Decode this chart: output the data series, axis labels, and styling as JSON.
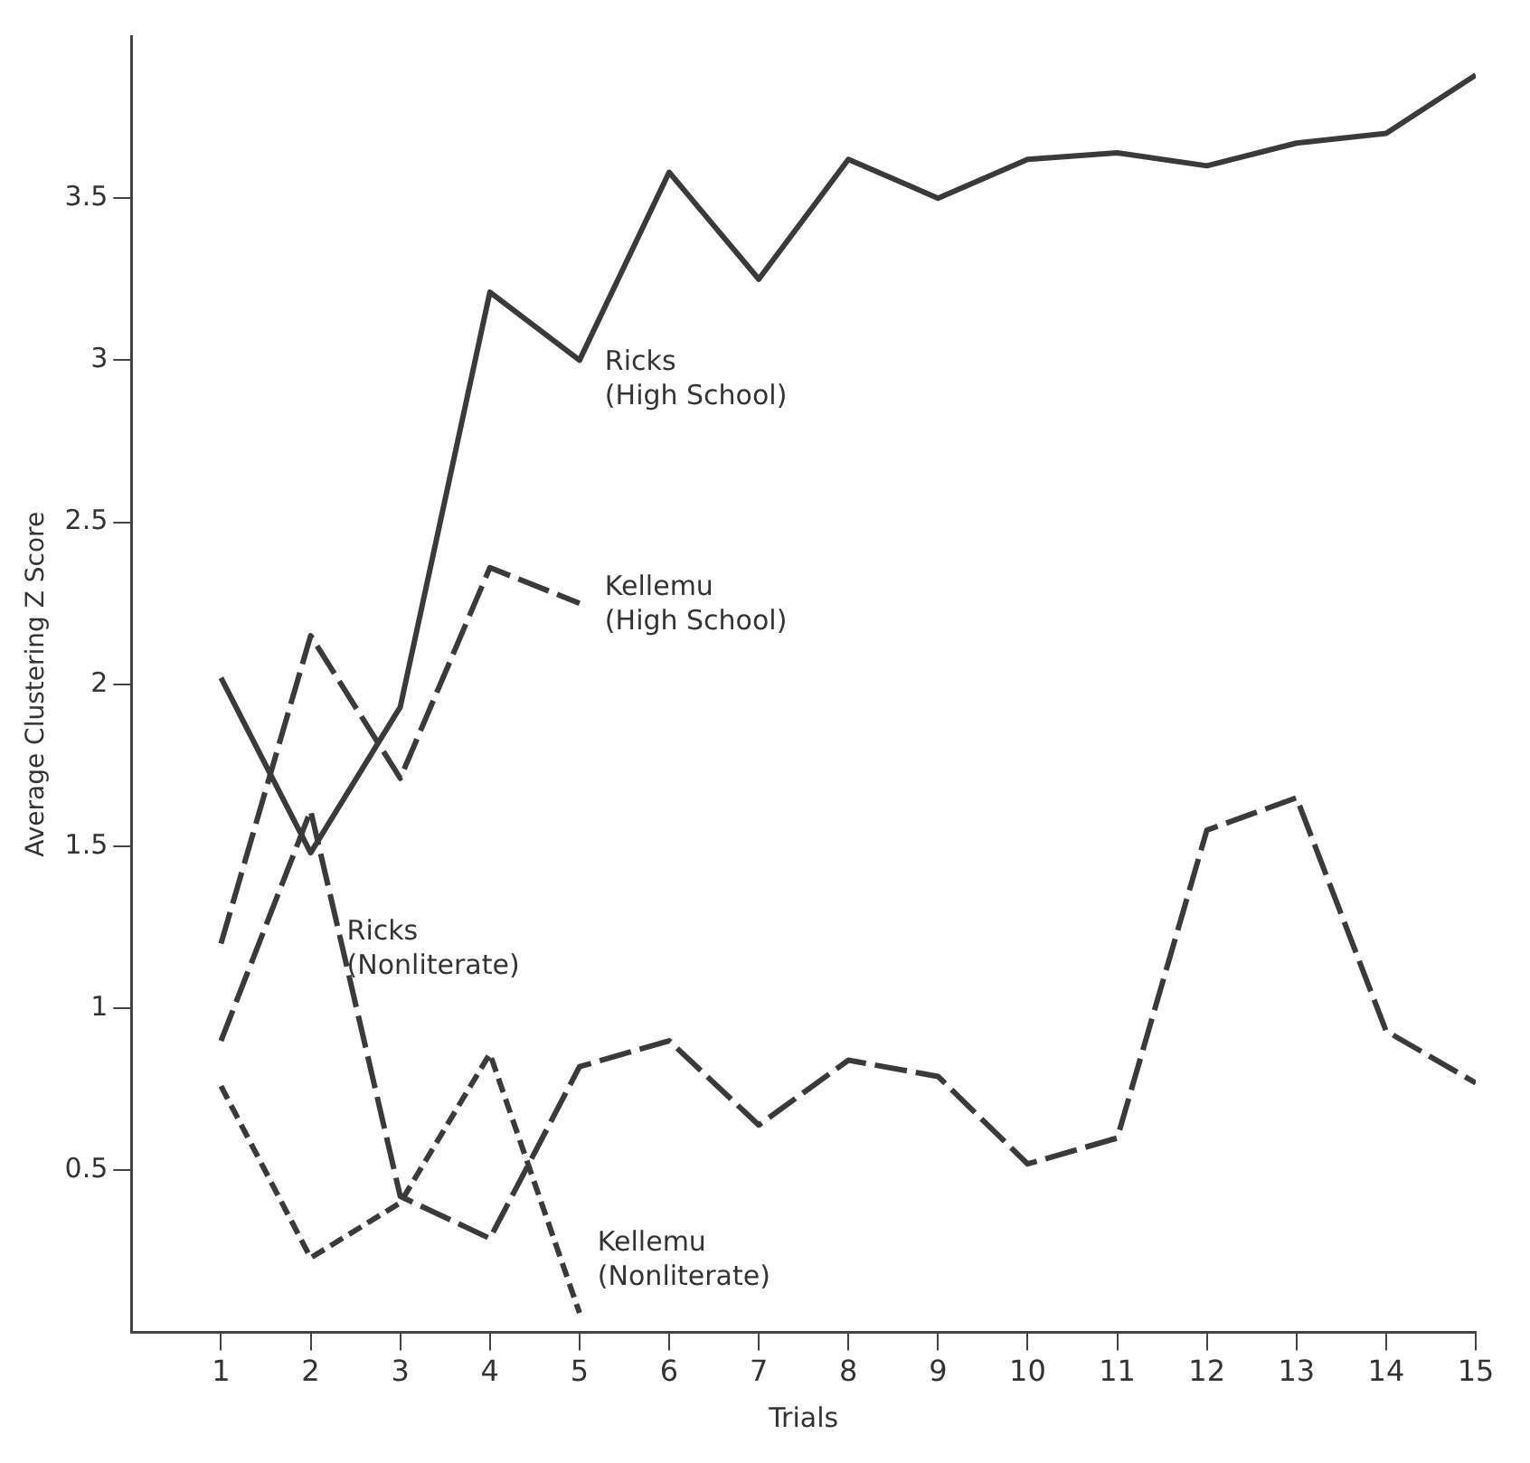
{
  "chart_data": {
    "type": "line",
    "xlabel": "Trials",
    "ylabel": "Average Clustering Z Score",
    "x": [
      1,
      2,
      3,
      4,
      5,
      6,
      7,
      8,
      9,
      10,
      11,
      12,
      13,
      14,
      15
    ],
    "series": [
      {
        "name": "Ricks (High School)",
        "color": "#3a3a3a",
        "line_style": "solid",
        "values": [
          2.02,
          1.48,
          1.93,
          3.21,
          3.0,
          3.58,
          3.25,
          3.62,
          3.5,
          3.62,
          3.64,
          3.6,
          3.67,
          3.7,
          3.88
        ]
      },
      {
        "name": "Kellemu (High School)",
        "color": "#3a3a3a",
        "line_style": "dashed",
        "values": [
          1.2,
          2.15,
          1.71,
          2.36,
          2.25,
          null,
          null,
          null,
          null,
          null,
          null,
          null,
          null,
          null,
          null
        ]
      },
      {
        "name": "Ricks (Nonliterate)",
        "color": "#3a3a3a",
        "line_style": "dashed",
        "values": [
          0.9,
          1.61,
          0.42,
          0.29,
          0.82,
          0.9,
          0.64,
          0.84,
          0.79,
          0.52,
          0.6,
          1.55,
          1.65,
          0.93,
          0.77
        ]
      },
      {
        "name": "Kellemu (Nonliterate)",
        "color": "#3a3a3a",
        "line_style": "dotted",
        "values": [
          0.76,
          0.23,
          0.4,
          0.86,
          0.06,
          null,
          null,
          null,
          null,
          null,
          null,
          null,
          null,
          null,
          null
        ]
      }
    ],
    "xlim": [
      0,
      15
    ],
    "xticks": [
      1,
      2,
      3,
      4,
      5,
      6,
      7,
      8,
      9,
      10,
      11,
      12,
      13,
      14,
      15
    ],
    "ylim": [
      0,
      4
    ],
    "yticks": [
      0.5,
      1.0,
      1.5,
      2.0,
      2.5,
      3.0,
      3.5
    ],
    "grid": false,
    "legend": false,
    "marker": "none"
  }
}
